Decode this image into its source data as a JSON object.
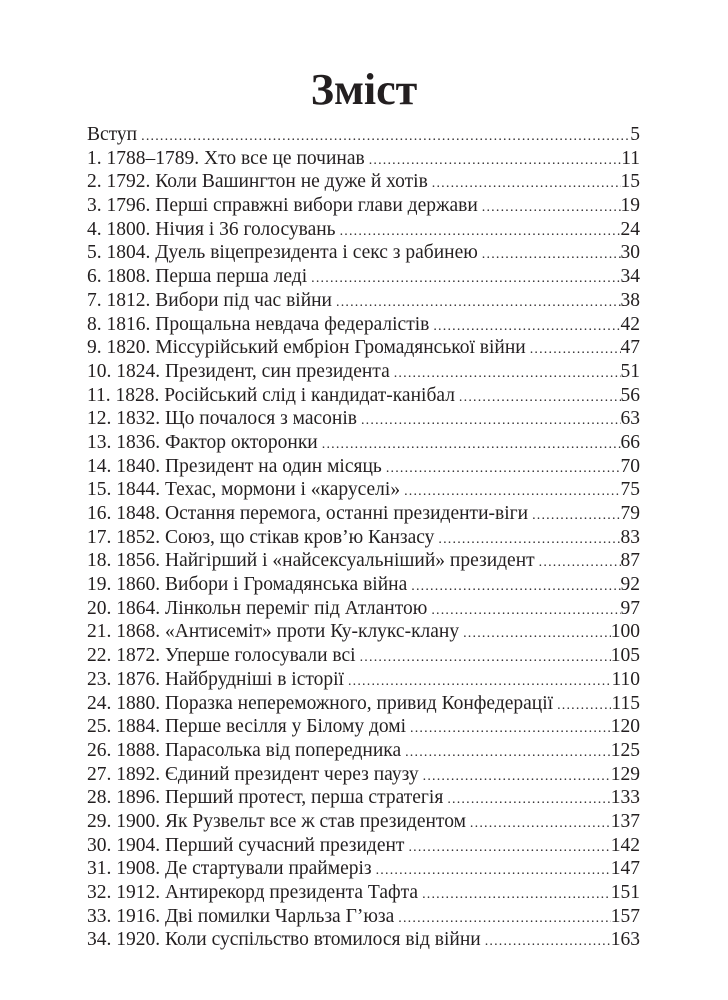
{
  "title": "Зміст",
  "entries": [
    {
      "label": "Вступ",
      "page": "5"
    },
    {
      "label": "1. 1788–1789. Хто все це починав",
      "page": "11"
    },
    {
      "label": "2. 1792. Коли Вашингтон не дуже й хотів",
      "page": "15"
    },
    {
      "label": "3. 1796. Перші справжні вибори глави держави",
      "page": "19"
    },
    {
      "label": "4. 1800. Нічия і 36 голосувань",
      "page": "24"
    },
    {
      "label": "5. 1804. Дуель віцепрезидента і секс з рабинею",
      "page": "30"
    },
    {
      "label": "6. 1808. Перша перша леді",
      "page": "34"
    },
    {
      "label": "7. 1812. Вибори під час війни",
      "page": "38"
    },
    {
      "label": "8. 1816. Прощальна невдача федералістів",
      "page": "42"
    },
    {
      "label": "9. 1820. Міссурійський ембріон Громадянської війни",
      "page": "47"
    },
    {
      "label": "10. 1824. Президент, син президента",
      "page": "51"
    },
    {
      "label": "11. 1828. Російський слід і кандидат-канібал",
      "page": "56"
    },
    {
      "label": "12. 1832. Що почалося з масонів",
      "page": "63"
    },
    {
      "label": "13. 1836. Фактор окторонки",
      "page": "66"
    },
    {
      "label": "14. 1840. Президент на один місяць",
      "page": "70"
    },
    {
      "label": "15. 1844. Техас, мормони і «каруселі»",
      "page": "75"
    },
    {
      "label": "16. 1848. Остання перемога, останні президенти-віги",
      "page": "79"
    },
    {
      "label": "17. 1852. Союз, що стікав кров’ю Канзасу",
      "page": "83"
    },
    {
      "label": "18. 1856. Найгірший і «найсексуальніший» президент",
      "page": "87"
    },
    {
      "label": "19. 1860. Вибори і Громадянська війна",
      "page": "92"
    },
    {
      "label": "20. 1864. Лінкольн переміг під Атлантою",
      "page": "97"
    },
    {
      "label": "21. 1868. «Антисеміт» проти Ку-клукс-клану",
      "page": "100"
    },
    {
      "label": "22. 1872. Уперше голосували всі",
      "page": "105"
    },
    {
      "label": "23. 1876. Найбрудніші в історії",
      "page": "110"
    },
    {
      "label": "24. 1880. Поразка непереможного, привид Конфедерації",
      "page": "115"
    },
    {
      "label": "25. 1884. Перше весілля у Білому домі",
      "page": "120"
    },
    {
      "label": "26. 1888. Парасолька від попередника",
      "page": "125"
    },
    {
      "label": "27. 1892. Єдиний президент через паузу",
      "page": "129"
    },
    {
      "label": "28. 1896. Перший протест, перша стратегія",
      "page": "133"
    },
    {
      "label": "29. 1900. Як Рузвельт все ж став президентом",
      "page": "137"
    },
    {
      "label": "30. 1904. Перший сучасний президент",
      "page": "142"
    },
    {
      "label": "31. 1908. Де стартували праймеріз",
      "page": "147"
    },
    {
      "label": "32. 1912. Антирекорд президента Тафта",
      "page": "151"
    },
    {
      "label": "33. 1916. Дві помилки Чарльза Г’юза",
      "page": "157"
    },
    {
      "label": "34. 1920. Коли суспільство втомилося від війни",
      "page": "163"
    }
  ]
}
